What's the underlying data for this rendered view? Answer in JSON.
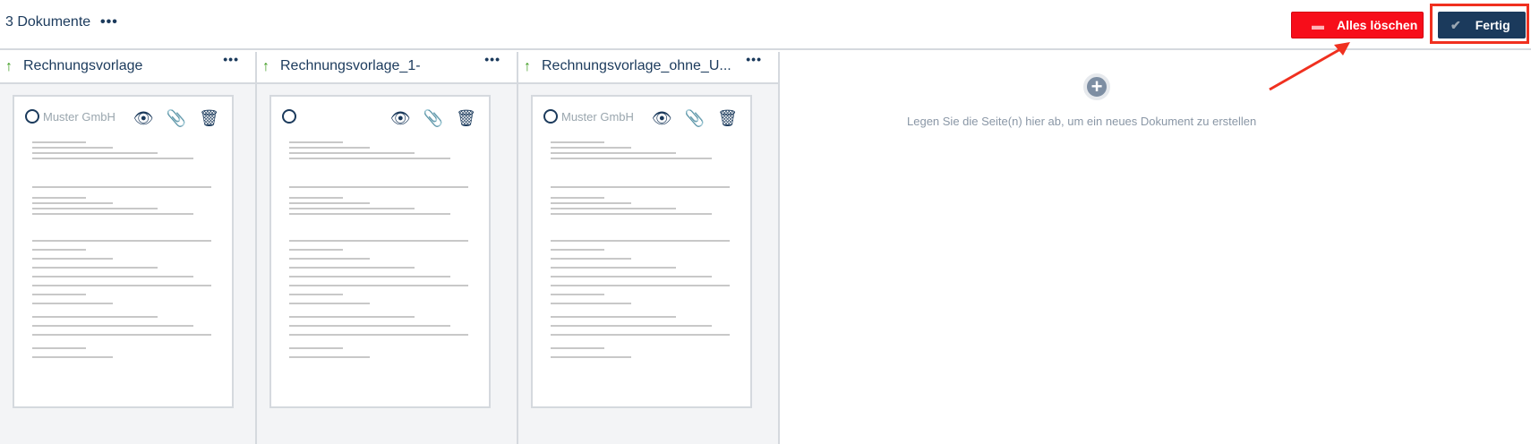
{
  "header": {
    "count_label": "3 Dokumente",
    "more": "•••",
    "delete_all_label": "Alles löschen",
    "done_label": "Fertig"
  },
  "colors": {
    "danger": "#f70d1a",
    "primary": "#1b3a5c",
    "success": "#3a9a1c",
    "highlight": "#f0301f"
  },
  "documents": [
    {
      "title": "Rechnungsvorlage",
      "more": "•••",
      "logo": "Muster GmbH"
    },
    {
      "title": "Rechnungsvorlage_1-",
      "more": "•••",
      "logo": ""
    },
    {
      "title": "Rechnungsvorlage_ohne_U...",
      "more": "•••",
      "logo": "Muster GmbH"
    }
  ],
  "dropzone": {
    "icon": "plus-circle-icon",
    "text": "Legen Sie die Seite(n) hier ab, um ein neues Dokument zu erstellen"
  }
}
